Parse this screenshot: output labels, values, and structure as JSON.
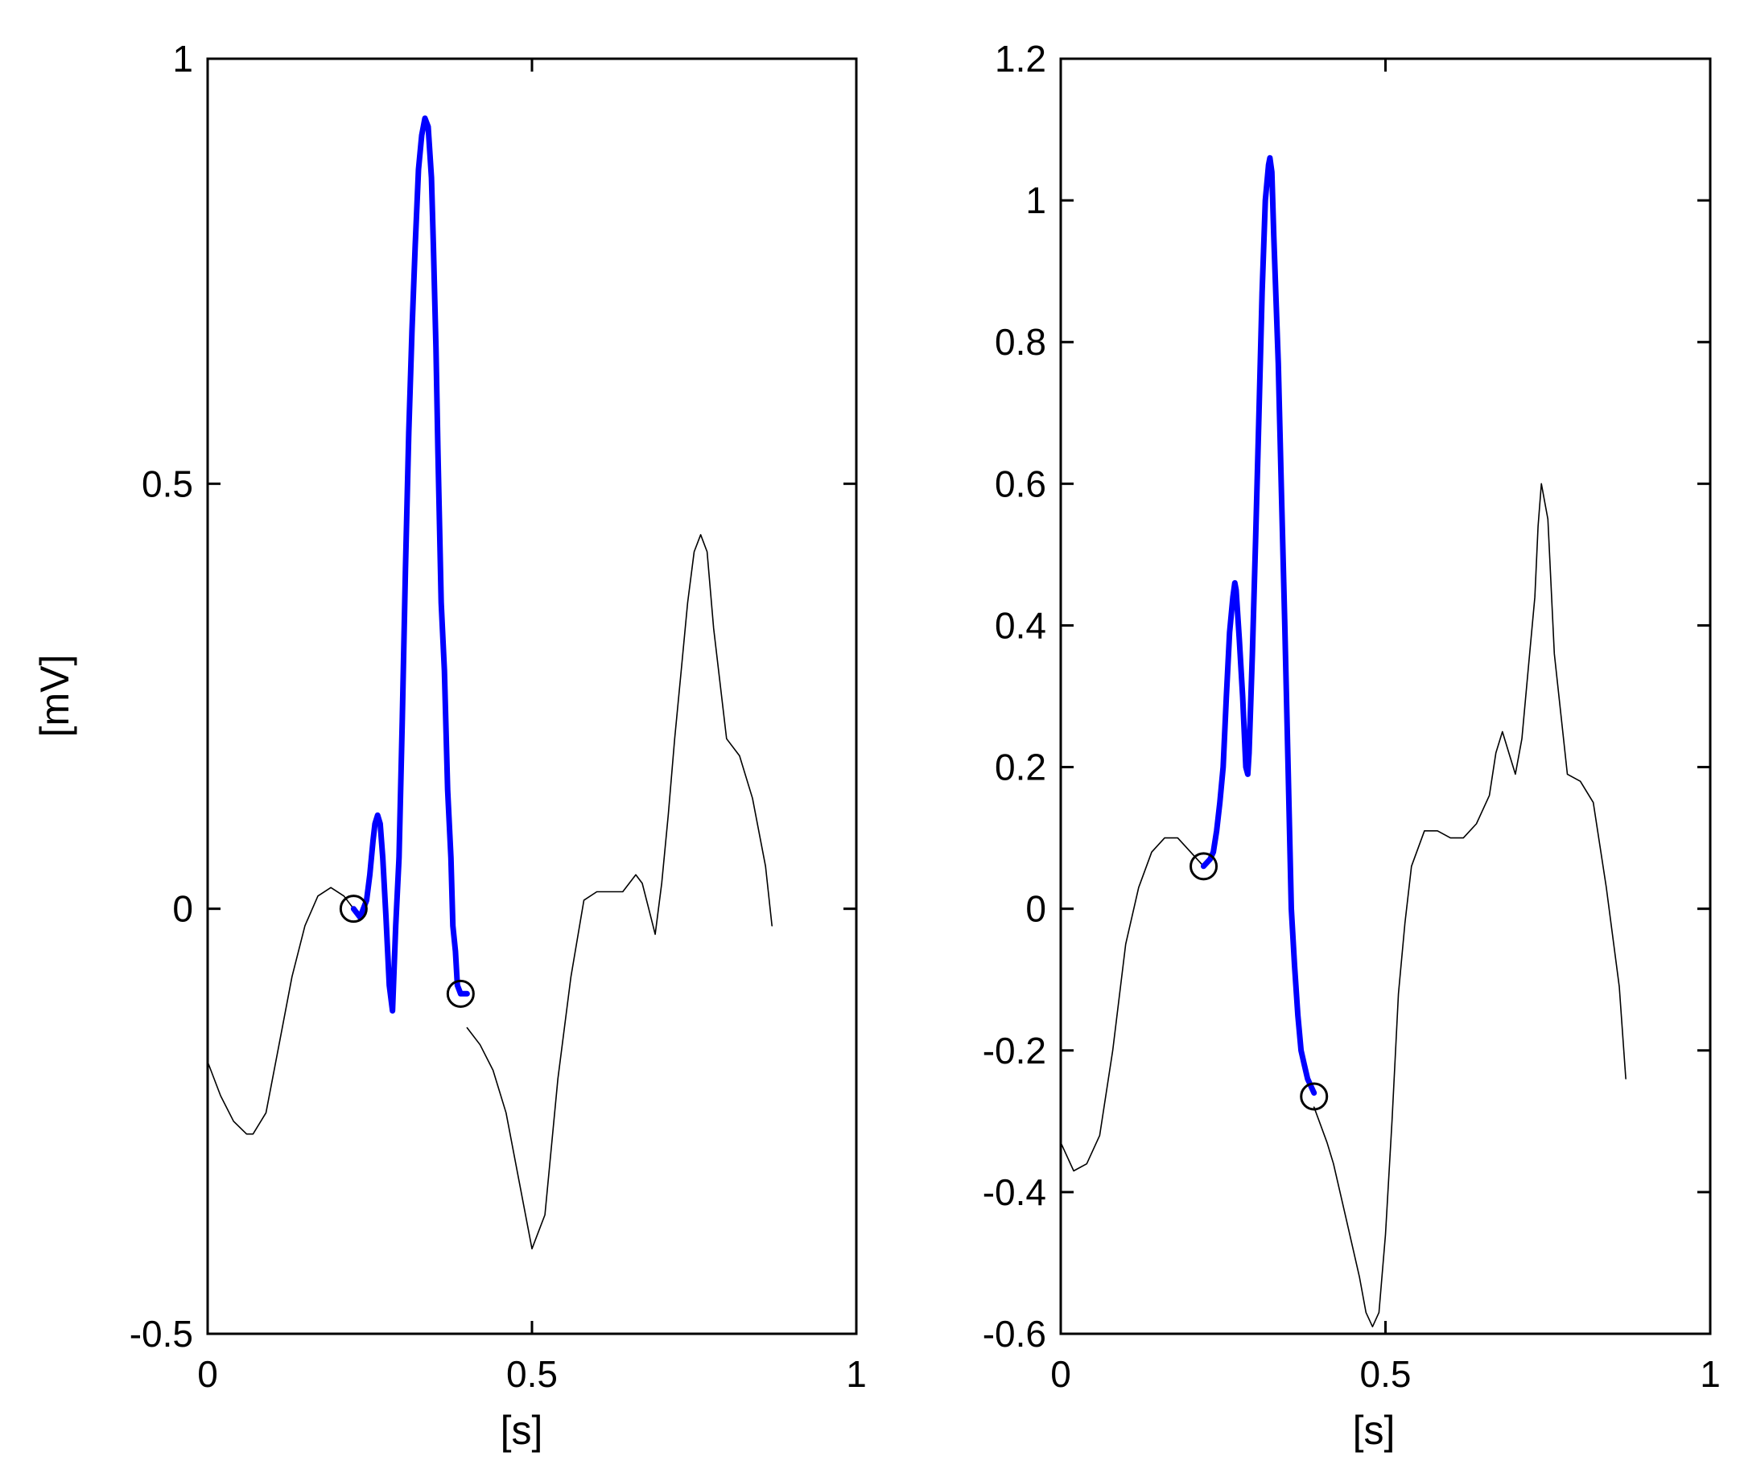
{
  "chart_data": [
    {
      "type": "line",
      "xlabel": "[s]",
      "ylabel": "[mV]",
      "xlim": [
        0,
        1
      ],
      "ylim": [
        -0.5,
        1
      ],
      "xticks": [
        0,
        0.5,
        1
      ],
      "xtick_labels": [
        "0",
        "0.5",
        "1"
      ],
      "yticks": [
        -0.5,
        0,
        0.5,
        1
      ],
      "ytick_labels": [
        "-0.5",
        "0",
        "0.5",
        "1"
      ],
      "grid": false,
      "colors": {
        "signal": "#000000",
        "segment": "#0000ff",
        "marker": "#000000",
        "frame": "#000000"
      },
      "series": [
        {
          "x": [
            0.0,
            0.02,
            0.04,
            0.06,
            0.07,
            0.09,
            0.11,
            0.13,
            0.15,
            0.17,
            0.19,
            0.21,
            0.225
          ],
          "y": [
            -0.18,
            -0.22,
            -0.25,
            -0.265,
            -0.265,
            -0.24,
            -0.16,
            -0.08,
            -0.02,
            0.015,
            0.025,
            0.015,
            0.0
          ]
        },
        {
          "x": [
            0.225,
            0.235,
            0.245,
            0.25,
            0.255,
            0.258,
            0.262,
            0.266,
            0.27,
            0.275,
            0.28,
            0.285,
            0.29,
            0.295,
            0.3,
            0.305,
            0.31,
            0.315,
            0.32,
            0.325,
            0.33,
            0.335,
            0.34,
            0.345,
            0.348,
            0.352,
            0.355,
            0.36,
            0.365,
            0.37,
            0.375,
            0.378,
            0.382,
            0.385,
            0.39,
            0.395,
            0.4
          ],
          "y": [
            0.0,
            -0.01,
            0.01,
            0.04,
            0.08,
            0.1,
            0.11,
            0.1,
            0.06,
            -0.01,
            -0.09,
            -0.12,
            -0.02,
            0.06,
            0.22,
            0.4,
            0.56,
            0.68,
            0.78,
            0.87,
            0.91,
            0.93,
            0.92,
            0.86,
            0.78,
            0.66,
            0.54,
            0.36,
            0.28,
            0.14,
            0.06,
            -0.02,
            -0.05,
            -0.09,
            -0.1,
            -0.1,
            -0.1
          ]
        },
        {
          "x": [
            0.4,
            0.42,
            0.44,
            0.46,
            0.48,
            0.5,
            0.52,
            0.54,
            0.56,
            0.58,
            0.6,
            0.62,
            0.64,
            0.66,
            0.67,
            0.68,
            0.69,
            0.7,
            0.71,
            0.72,
            0.73,
            0.74,
            0.75,
            0.76,
            0.77,
            0.78,
            0.8,
            0.82,
            0.84,
            0.86,
            0.87
          ],
          "y": [
            -0.14,
            -0.16,
            -0.19,
            -0.24,
            -0.32,
            -0.4,
            -0.36,
            -0.2,
            -0.08,
            0.01,
            0.02,
            0.02,
            0.02,
            0.04,
            0.03,
            0.0,
            -0.03,
            0.03,
            0.11,
            0.2,
            0.28,
            0.36,
            0.42,
            0.44,
            0.42,
            0.33,
            0.2,
            0.18,
            0.13,
            0.05,
            -0.02
          ]
        }
      ],
      "markers": [
        {
          "x": 0.225,
          "y": 0.0
        },
        {
          "x": 0.39,
          "y": -0.1
        }
      ]
    },
    {
      "type": "line",
      "xlabel": "[s]",
      "ylabel": "",
      "xlim": [
        0,
        1
      ],
      "ylim": [
        -0.6,
        1.2
      ],
      "xticks": [
        0,
        0.5,
        1
      ],
      "xtick_labels": [
        "0",
        "0.5",
        "1"
      ],
      "yticks": [
        -0.6,
        -0.4,
        -0.2,
        0,
        0.2,
        0.4,
        0.6,
        0.8,
        1,
        1.2
      ],
      "ytick_labels": [
        "-0.6",
        "-0.4",
        "-0.2",
        "0",
        "0.2",
        "0.4",
        "0.6",
        "0.8",
        "1",
        "1.2"
      ],
      "grid": false,
      "colors": {
        "signal": "#000000",
        "segment": "#0000ff",
        "marker": "#000000",
        "frame": "#000000"
      },
      "series": [
        {
          "x": [
            0.0,
            0.02,
            0.04,
            0.06,
            0.08,
            0.1,
            0.12,
            0.14,
            0.16,
            0.18,
            0.2,
            0.22
          ],
          "y": [
            -0.33,
            -0.37,
            -0.36,
            -0.32,
            -0.2,
            -0.05,
            0.03,
            0.08,
            0.1,
            0.1,
            0.08,
            0.06
          ]
        },
        {
          "x": [
            0.22,
            0.23,
            0.235,
            0.24,
            0.245,
            0.25,
            0.255,
            0.26,
            0.265,
            0.268,
            0.27,
            0.275,
            0.28,
            0.285,
            0.288,
            0.29,
            0.295,
            0.3,
            0.305,
            0.31,
            0.315,
            0.32,
            0.322,
            0.325,
            0.328,
            0.335,
            0.34,
            0.345,
            0.35,
            0.355,
            0.36,
            0.365,
            0.37,
            0.375,
            0.38,
            0.385,
            0.39
          ],
          "y": [
            0.06,
            0.07,
            0.08,
            0.11,
            0.15,
            0.2,
            0.3,
            0.39,
            0.44,
            0.46,
            0.45,
            0.38,
            0.3,
            0.2,
            0.19,
            0.22,
            0.36,
            0.52,
            0.69,
            0.87,
            1.0,
            1.05,
            1.06,
            1.04,
            0.95,
            0.77,
            0.58,
            0.4,
            0.2,
            0.0,
            -0.08,
            -0.15,
            -0.2,
            -0.22,
            -0.24,
            -0.25,
            -0.26
          ]
        },
        {
          "x": [
            0.39,
            0.41,
            0.42,
            0.44,
            0.46,
            0.47,
            0.48,
            0.49,
            0.5,
            0.51,
            0.52,
            0.53,
            0.54,
            0.56,
            0.58,
            0.6,
            0.62,
            0.64,
            0.66,
            0.67,
            0.68,
            0.69,
            0.7,
            0.71,
            0.72,
            0.73,
            0.735,
            0.74,
            0.75,
            0.76,
            0.78,
            0.8,
            0.82,
            0.84,
            0.86,
            0.87
          ],
          "y": [
            -0.28,
            -0.33,
            -0.36,
            -0.44,
            -0.52,
            -0.57,
            -0.59,
            -0.57,
            -0.46,
            -0.3,
            -0.12,
            -0.02,
            0.06,
            0.11,
            0.11,
            0.1,
            0.1,
            0.12,
            0.16,
            0.22,
            0.25,
            0.22,
            0.19,
            0.24,
            0.34,
            0.44,
            0.54,
            0.6,
            0.55,
            0.36,
            0.19,
            0.18,
            0.15,
            0.03,
            -0.11,
            -0.24
          ]
        }
      ],
      "markers": [
        {
          "x": 0.22,
          "y": 0.06
        },
        {
          "x": 0.39,
          "y": -0.265
        }
      ]
    }
  ]
}
